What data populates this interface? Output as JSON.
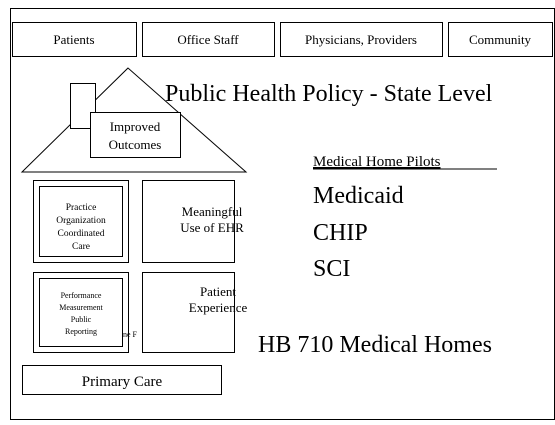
{
  "tabs": [
    "Patients",
    "Office Staff",
    "Physicians, Providers",
    "Community"
  ],
  "title": "Public Health Policy - State Level",
  "house": {
    "roof_label": [
      "Improved",
      "Outcomes"
    ],
    "blocks": [
      {
        "lines": [
          "Practice",
          "Organization",
          "Coordinated",
          "Care"
        ]
      },
      {
        "lines": [
          "Meaningful",
          "Use of EHR"
        ]
      },
      {
        "lines": [
          "Performance",
          "Measurement",
          "Public",
          "Reporting"
        ]
      },
      {
        "lines": [
          "Patient",
          "Experience"
        ]
      }
    ],
    "hidden_text": "ne F",
    "foundation": "Primary Care"
  },
  "pilots": {
    "heading": "Medical Home Pilots",
    "items": [
      "Medicaid",
      "CHIP",
      "SCI"
    ]
  },
  "bill": "HB 710 Medical Homes"
}
